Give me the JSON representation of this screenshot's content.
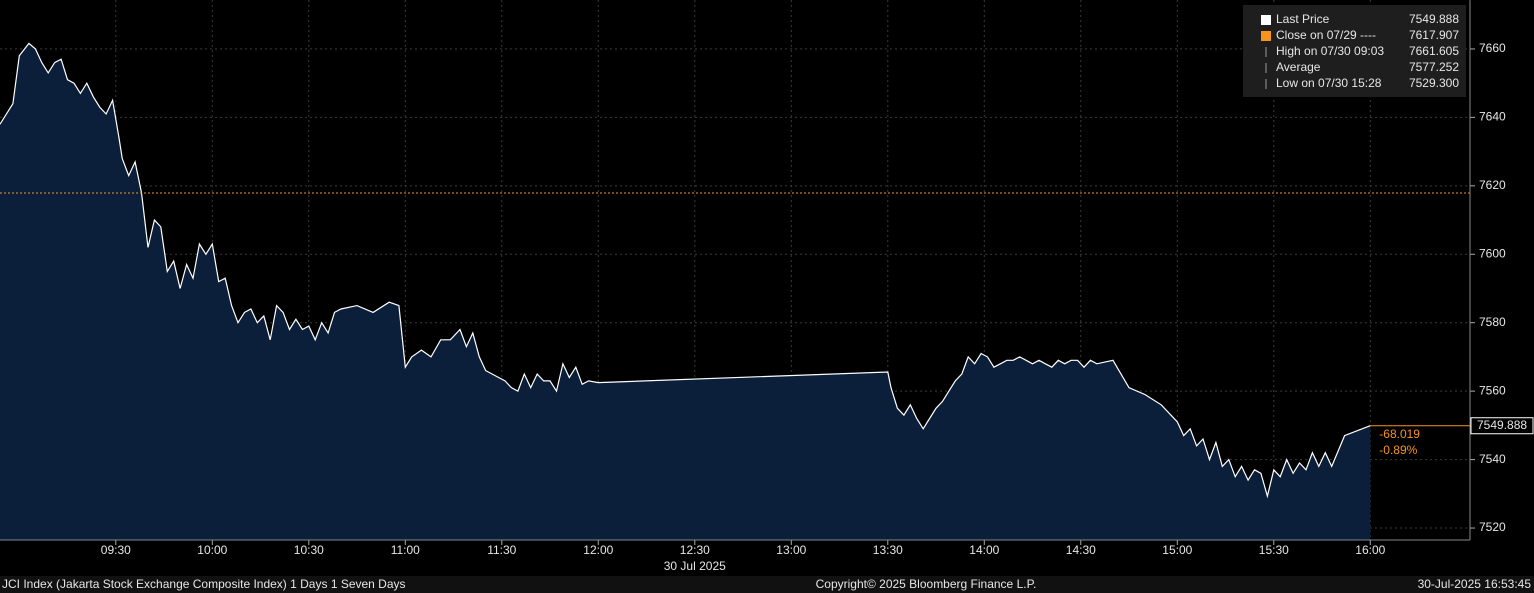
{
  "chart_data": {
    "type": "area",
    "x": [
      "08:54",
      "08:58",
      "09:00",
      "09:03",
      "09:05",
      "09:07",
      "09:09",
      "09:11",
      "09:13",
      "09:15",
      "09:17",
      "09:19",
      "09:21",
      "09:23",
      "09:25",
      "09:27",
      "09:29",
      "09:31",
      "09:32",
      "09:34",
      "09:36",
      "09:38",
      "09:40",
      "09:42",
      "09:44",
      "09:46",
      "09:48",
      "09:50",
      "09:52",
      "09:54",
      "09:56",
      "09:58",
      "10:00",
      "10:02",
      "10:04",
      "10:06",
      "10:08",
      "10:10",
      "10:12",
      "10:14",
      "10:16",
      "10:18",
      "10:20",
      "10:22",
      "10:24",
      "10:26",
      "10:28",
      "10:30",
      "10:32",
      "10:34",
      "10:36",
      "10:38",
      "10:40",
      "10:45",
      "10:50",
      "10:55",
      "10:58",
      "11:00",
      "11:02",
      "11:05",
      "11:08",
      "11:11",
      "11:14",
      "11:17",
      "11:19",
      "11:21",
      "11:23",
      "11:25",
      "11:27",
      "11:29",
      "11:31",
      "11:33",
      "11:35",
      "11:37",
      "11:39",
      "11:41",
      "11:43",
      "11:45",
      "11:47",
      "11:49",
      "11:51",
      "11:53",
      "11:55",
      "11:57",
      "12:00",
      "13:30",
      "13:31",
      "13:33",
      "13:35",
      "13:37",
      "13:39",
      "13:41",
      "13:43",
      "13:45",
      "13:47",
      "13:49",
      "13:51",
      "13:53",
      "13:55",
      "13:57",
      "13:59",
      "14:01",
      "14:03",
      "14:05",
      "14:07",
      "14:09",
      "14:11",
      "14:13",
      "14:15",
      "14:17",
      "14:19",
      "14:21",
      "14:23",
      "14:25",
      "14:27",
      "14:29",
      "14:31",
      "14:33",
      "14:35",
      "14:40",
      "14:45",
      "14:50",
      "14:55",
      "15:00",
      "15:02",
      "15:04",
      "15:06",
      "15:08",
      "15:10",
      "15:12",
      "15:14",
      "15:16",
      "15:18",
      "15:20",
      "15:22",
      "15:24",
      "15:26",
      "15:28",
      "15:30",
      "15:32",
      "15:34",
      "15:36",
      "15:38",
      "15:40",
      "15:42",
      "15:44",
      "15:46",
      "15:48",
      "15:52",
      "16:00"
    ],
    "series": [
      {
        "name": "Last Price",
        "color": "#ffffff",
        "fill": "#0b1f3a",
        "values": [
          7638,
          7644,
          7658,
          7661.605,
          7660,
          7656,
          7653,
          7656,
          7657,
          7651,
          7650,
          7647,
          7650,
          7646,
          7643,
          7641,
          7645,
          7634,
          7628,
          7623,
          7627,
          7618,
          7602,
          7610,
          7608,
          7595,
          7598,
          7590,
          7597,
          7593,
          7603,
          7600,
          7603,
          7592,
          7593,
          7585,
          7580,
          7583,
          7584,
          7580,
          7582,
          7575,
          7585,
          7583,
          7578,
          7581,
          7578,
          7579,
          7575,
          7580,
          7577,
          7583,
          7584,
          7585,
          7583,
          7586,
          7585,
          7567,
          7570,
          7572,
          7570,
          7575,
          7575,
          7578,
          7573,
          7577,
          7570,
          7566,
          7565,
          7564,
          7563,
          7561,
          7560,
          7565,
          7561,
          7565,
          7563,
          7563,
          7560,
          7568,
          7564,
          7567,
          7562,
          7563,
          7562.5,
          7565.6,
          7561,
          7555,
          7553,
          7556,
          7552,
          7549,
          7552,
          7555,
          7557,
          7560,
          7563,
          7565,
          7570,
          7568,
          7571,
          7570,
          7567,
          7568,
          7569,
          7569,
          7570,
          7569,
          7568,
          7569,
          7568,
          7567,
          7569,
          7568,
          7569,
          7569,
          7567,
          7569,
          7568,
          7569,
          7561,
          7559,
          7556,
          7551,
          7547,
          7549,
          7544,
          7546,
          7540,
          7545,
          7538,
          7540,
          7535,
          7538,
          7534,
          7537,
          7536,
          7529.3,
          7537,
          7535,
          7540,
          7536,
          7539,
          7537,
          7542,
          7538,
          7542,
          7538,
          7547,
          7549.888
        ]
      }
    ],
    "legend": [
      {
        "name": "Last Price",
        "value": 7549.888,
        "color": "#ffffff"
      },
      {
        "name": "Close on 07/29 ----",
        "value": 7617.907,
        "color": "#f7941d"
      },
      {
        "name": "High on 07/30 09:03",
        "value": 7661.605
      },
      {
        "name": "Average",
        "value": 7577.252
      },
      {
        "name": "Low on 07/30 15:28",
        "value": 7529.3,
        "value_label": "7529.300"
      }
    ],
    "change": -68.019,
    "change_pct": "-0.89%",
    "change_color": "#f7941d",
    "xlim": [
      "08:54",
      "16:31"
    ],
    "xticks": [
      "09:30",
      "10:00",
      "10:30",
      "11:00",
      "11:30",
      "12:00",
      "12:30",
      "13:00",
      "13:30",
      "14:00",
      "14:30",
      "15:00",
      "15:30",
      "16:00"
    ],
    "x_sublabel": "30 Jul 2025",
    "ylim": [
      7516.5,
      7674.3
    ],
    "yticks": [
      7520,
      7540,
      7560,
      7580,
      7600,
      7620,
      7640,
      7660
    ],
    "grid": true,
    "footer_left": "JCI Index (Jakarta Stock Exchange Composite Index) 1 Days 1 Seven Days",
    "copyright": "Copyright© 2025 Bloomberg Finance L.P.",
    "timestamp": "30-Jul-2025 16:53:45"
  }
}
